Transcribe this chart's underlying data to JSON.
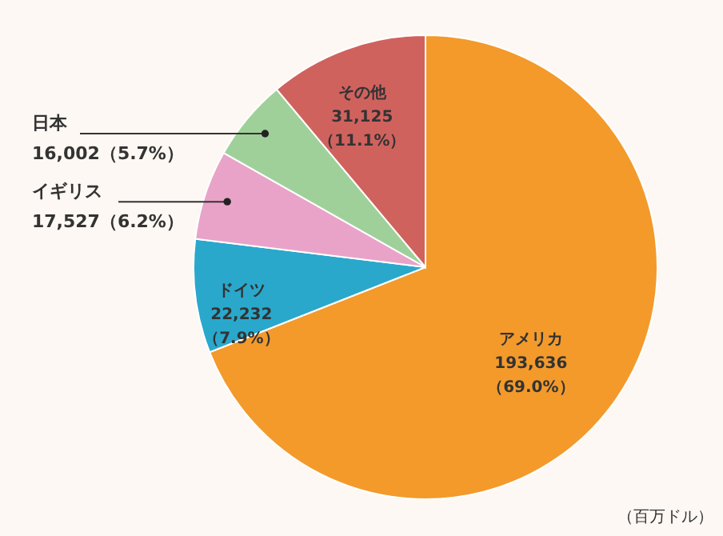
{
  "chart_data": {
    "type": "pie",
    "categories": [
      "アメリカ",
      "ドイツ",
      "イギリス",
      "日本",
      "その他"
    ],
    "values": [
      193636,
      22232,
      17527,
      16002,
      31125
    ],
    "value_labels": [
      "193,636\n（69.0%）",
      "22,232\n（7.9%）",
      "17,527（6.2%）",
      "16,002（5.7%）",
      "31,125\n（11.1%）"
    ],
    "colors": [
      "#f39a2b",
      "#29a8cc",
      "#e9a3c9",
      "#9fd09a",
      "#d0625e"
    ],
    "annotations": [
      "（百万ドル）"
    ]
  }
}
